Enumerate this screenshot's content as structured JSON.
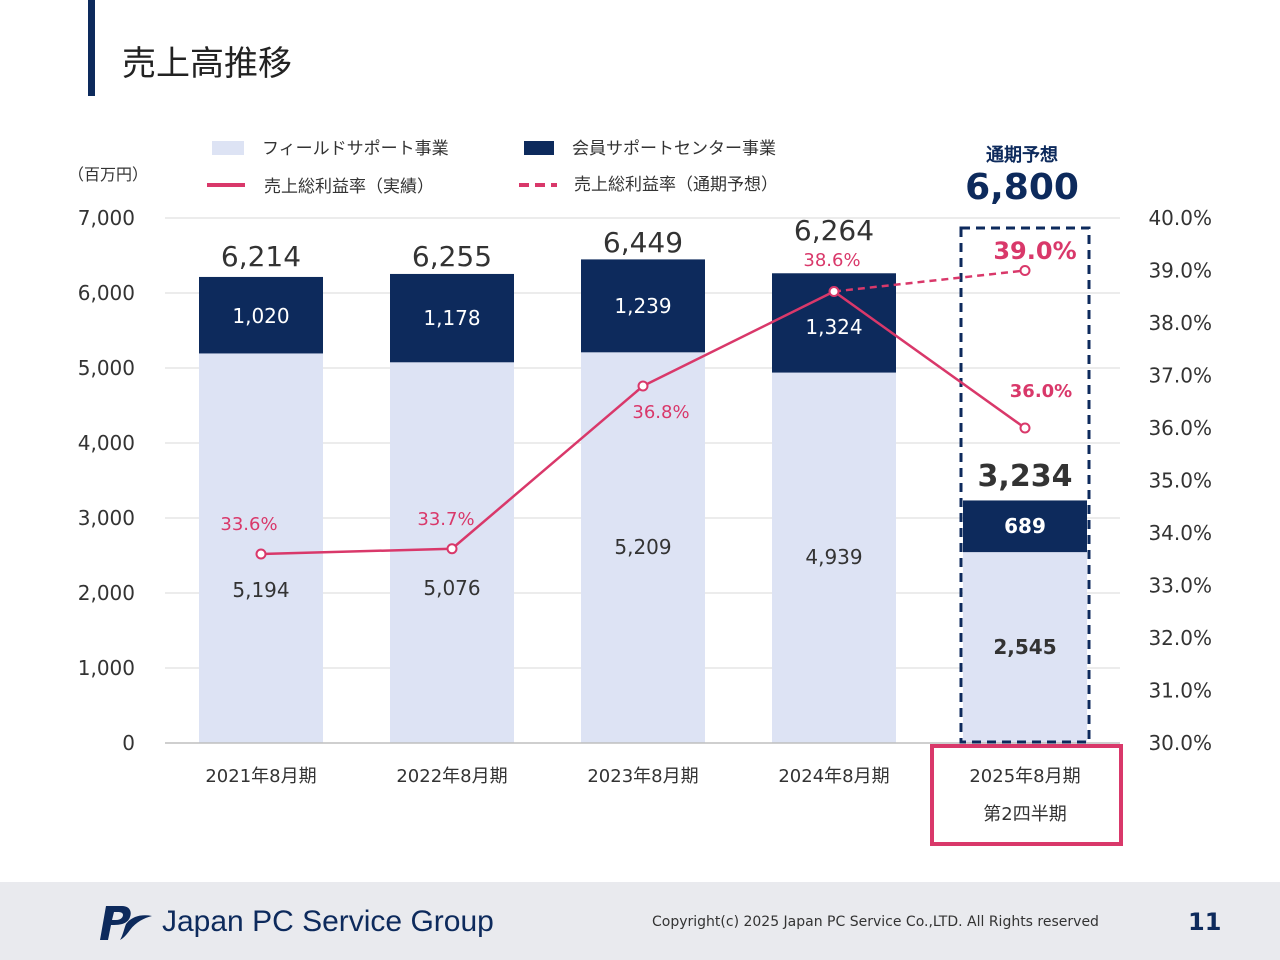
{
  "page": {
    "title": "売上高推移",
    "logo_text": "Japan PC Service Group",
    "copyright": "Copyright(c) 2025 Japan PC Service Co.,LTD. All Rights reserved",
    "page_number": "11"
  },
  "colors": {
    "field_support": "#dde3f4",
    "member_support": "#0d2a5c",
    "margin_line": "#d9386a",
    "forecast_box": "#0d2a5c",
    "highlight_box": "#d9386a",
    "gridline": "#d9d9d9"
  },
  "chart_data": {
    "type": "bar",
    "stacked": true,
    "unit_label": "（百万円）",
    "categories": [
      "2021年8月期",
      "2022年8月期",
      "2023年8月期",
      "2024年8月期",
      "2025年8月期"
    ],
    "category_sublabels": [
      "",
      "",
      "",
      "",
      "第2四半期"
    ],
    "series": [
      {
        "name": "フィールドサポート事業",
        "values": [
          5194,
          5076,
          5209,
          4939,
          2545
        ],
        "labels": [
          "5,194",
          "5,076",
          "5,209",
          "4,939",
          "2,545"
        ]
      },
      {
        "name": "会員サポートセンター事業",
        "values": [
          1020,
          1178,
          1239,
          1324,
          689
        ],
        "labels": [
          "1,020",
          "1,178",
          "1,239",
          "1,324",
          "689"
        ]
      }
    ],
    "totals": [
      6214,
      6255,
      6449,
      6264,
      3234
    ],
    "total_labels": [
      "6,214",
      "6,255",
      "6,449",
      "6,264",
      "3,234"
    ],
    "line_series": [
      {
        "name": "売上総利益率（実績）",
        "axis": "right",
        "style": "solid",
        "values": [
          33.6,
          33.7,
          36.8,
          38.6,
          36.0
        ],
        "labels": [
          "33.6%",
          "33.7%",
          "36.8%",
          "38.6%",
          "36.0%"
        ]
      },
      {
        "name": "売上総利益率（通期予想）",
        "axis": "right",
        "style": "dashed",
        "points": [
          {
            "index": 3,
            "value": 38.6
          },
          {
            "index": 4,
            "value": 39.0
          }
        ],
        "labels": [
          "39.0%"
        ]
      }
    ],
    "forecast": {
      "title": "通期予想",
      "value": 6800,
      "label": "6,800"
    },
    "ylim": [
      0,
      7000
    ],
    "yticks": [
      0,
      1000,
      2000,
      3000,
      4000,
      5000,
      6000,
      7000
    ],
    "ytick_labels": [
      "0",
      "1,000",
      "2,000",
      "3,000",
      "4,000",
      "5,000",
      "6,000",
      "7,000"
    ],
    "y2lim": [
      30,
      40
    ],
    "y2ticks": [
      30,
      31,
      32,
      33,
      34,
      35,
      36,
      37,
      38,
      39,
      40
    ],
    "y2tick_labels": [
      "30.0%",
      "31.0%",
      "32.0%",
      "33.0%",
      "34.0%",
      "35.0%",
      "36.0%",
      "37.0%",
      "38.0%",
      "39.0%",
      "40.0%"
    ],
    "legend_position": "top",
    "grid": true
  }
}
